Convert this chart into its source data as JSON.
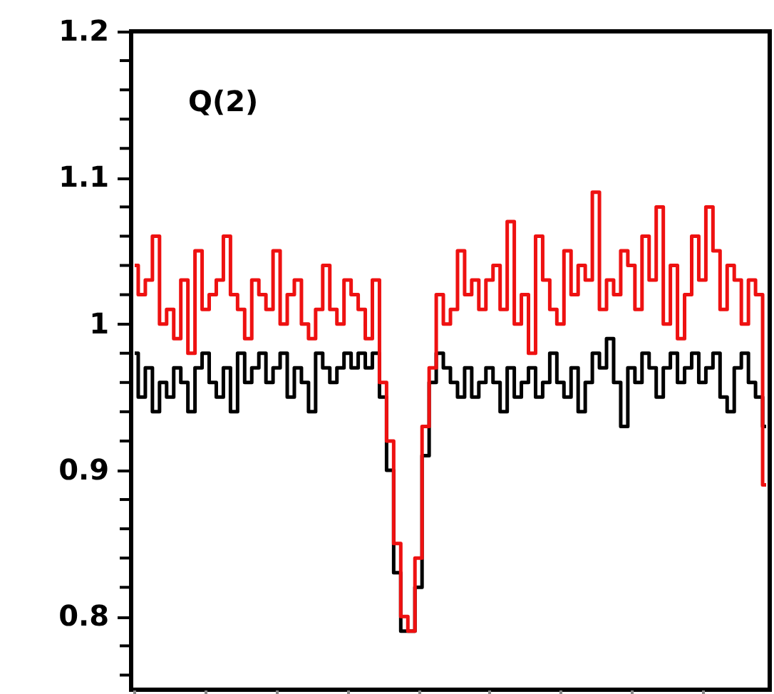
{
  "chart_data": {
    "type": "step",
    "categories": [
      null,
      null,
      null,
      null,
      null,
      null,
      null,
      null,
      null,
      null,
      null,
      null,
      null,
      null,
      null,
      null,
      null,
      null,
      null,
      null,
      null,
      null,
      null,
      null,
      null,
      null,
      null,
      null,
      null,
      null,
      null,
      null,
      null,
      null,
      null,
      null,
      null,
      null,
      null,
      null,
      null,
      null,
      null,
      null,
      null,
      null,
      null,
      null,
      null,
      null,
      null,
      null,
      null,
      null,
      null,
      null,
      null,
      null,
      null,
      null,
      null,
      null,
      null,
      null,
      null,
      null,
      null,
      null,
      null,
      null,
      null,
      null,
      null,
      null,
      null,
      null,
      null,
      null,
      null,
      null,
      null,
      null,
      null,
      null,
      null,
      null,
      null,
      null,
      null,
      null
    ],
    "series": [
      {
        "color": "#000000",
        "values": [
          0.98,
          0.95,
          0.97,
          0.94,
          0.96,
          0.95,
          0.97,
          0.96,
          0.94,
          0.97,
          0.98,
          0.96,
          0.95,
          0.97,
          0.94,
          0.98,
          0.96,
          0.97,
          0.98,
          0.96,
          0.97,
          0.98,
          0.95,
          0.97,
          0.96,
          0.94,
          0.98,
          0.97,
          0.96,
          0.97,
          0.98,
          0.97,
          0.98,
          0.97,
          0.98,
          0.95,
          0.9,
          0.83,
          0.79,
          0.79,
          0.82,
          0.91,
          0.96,
          0.98,
          0.97,
          0.96,
          0.95,
          0.97,
          0.95,
          0.96,
          0.97,
          0.96,
          0.94,
          0.97,
          0.95,
          0.96,
          0.97,
          0.95,
          0.96,
          0.98,
          0.96,
          0.95,
          0.97,
          0.94,
          0.96,
          0.98,
          0.97,
          0.99,
          0.96,
          0.93,
          0.97,
          0.96,
          0.98,
          0.97,
          0.95,
          0.97,
          0.98,
          0.96,
          0.97,
          0.98,
          0.96,
          0.97,
          0.98,
          0.95,
          0.94,
          0.97,
          0.98,
          0.96,
          0.95,
          0.93
        ]
      },
      {
        "color": "#ee1111",
        "values": [
          1.04,
          1.02,
          1.03,
          1.06,
          1.0,
          1.01,
          0.99,
          1.03,
          0.98,
          1.05,
          1.01,
          1.02,
          1.03,
          1.06,
          1.02,
          1.01,
          0.99,
          1.03,
          1.02,
          1.01,
          1.05,
          1.0,
          1.02,
          1.03,
          1.0,
          0.99,
          1.01,
          1.04,
          1.01,
          1.0,
          1.03,
          1.02,
          1.01,
          0.99,
          1.03,
          0.96,
          0.92,
          0.85,
          0.8,
          0.79,
          0.84,
          0.93,
          0.97,
          1.02,
          1.0,
          1.01,
          1.05,
          1.02,
          1.03,
          1.01,
          1.03,
          1.04,
          1.01,
          1.07,
          1.0,
          1.02,
          0.98,
          1.06,
          1.03,
          1.01,
          1.0,
          1.05,
          1.02,
          1.04,
          1.03,
          1.09,
          1.01,
          1.03,
          1.02,
          1.05,
          1.04,
          1.01,
          1.06,
          1.03,
          1.08,
          1.0,
          1.04,
          0.99,
          1.02,
          1.06,
          1.03,
          1.08,
          1.05,
          1.01,
          1.04,
          1.03,
          1.0,
          1.03,
          1.02,
          0.89
        ]
      }
    ],
    "ylim": [
      0.75,
      1.2
    ],
    "yticks": [
      {
        "value": 0.76,
        "label": null
      },
      {
        "value": 0.78,
        "label": null
      },
      0.8,
      {
        "value": 0.82,
        "label": null
      },
      {
        "value": 0.84,
        "label": null
      },
      {
        "value": 0.86,
        "label": null
      },
      {
        "value": 0.88,
        "label": null
      },
      0.9,
      {
        "value": 0.92,
        "label": null
      },
      {
        "value": 0.94,
        "label": null
      },
      {
        "value": 0.96,
        "label": null
      },
      {
        "value": 0.98,
        "label": null
      },
      1,
      {
        "value": 1.02,
        "label": null
      },
      {
        "value": 1.04,
        "label": null
      },
      {
        "value": 1.06,
        "label": null
      },
      {
        "value": 1.08,
        "label": null
      },
      1.1,
      {
        "value": 1.12,
        "label": null
      },
      {
        "value": 1.14,
        "label": null
      },
      {
        "value": 1.16,
        "label": null
      },
      {
        "value": 1.18,
        "label": null
      },
      1.2
    ],
    "tick_labels": "y",
    "annotations": [
      "Q(2)"
    ],
    "line_style": "solid",
    "grid": false
  }
}
